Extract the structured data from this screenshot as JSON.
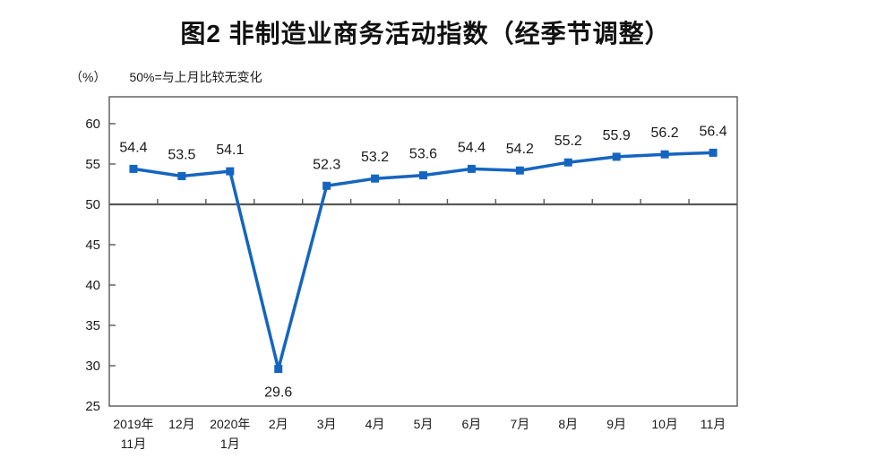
{
  "title": "图2 非制造业商务活动指数（经季节调整）",
  "y_unit_label": "（%）",
  "reference_note": "50%=与上月比较无变化",
  "chart_data": {
    "type": "line",
    "title": "图2 非制造业商务活动指数（经季节调整）",
    "categories": [
      "2019年\n11月",
      "12月",
      "2020年\n1月",
      "2月",
      "3月",
      "4月",
      "5月",
      "6月",
      "7月",
      "8月",
      "9月",
      "10月",
      "11月"
    ],
    "series": [
      {
        "name": "非制造业商务活动指数",
        "values": [
          54.4,
          53.5,
          54.1,
          29.6,
          52.3,
          53.2,
          53.6,
          54.4,
          54.2,
          55.2,
          55.9,
          56.2,
          56.4
        ]
      }
    ],
    "data_labels": [
      "54.4",
      "53.5",
      "54.1",
      "29.6",
      "52.3",
      "53.2",
      "53.6",
      "54.4",
      "54.2",
      "55.2",
      "55.9",
      "56.2",
      "56.4"
    ],
    "ylim": [
      25,
      60
    ],
    "ytick_interval": 5,
    "yticks": [
      25,
      30,
      35,
      40,
      45,
      50,
      55,
      60
    ],
    "reference_line": 50,
    "grid": false,
    "legend": "none",
    "line_color": "#1565c0",
    "axis_color": "#595959",
    "label_color": "#1a1a1a"
  }
}
